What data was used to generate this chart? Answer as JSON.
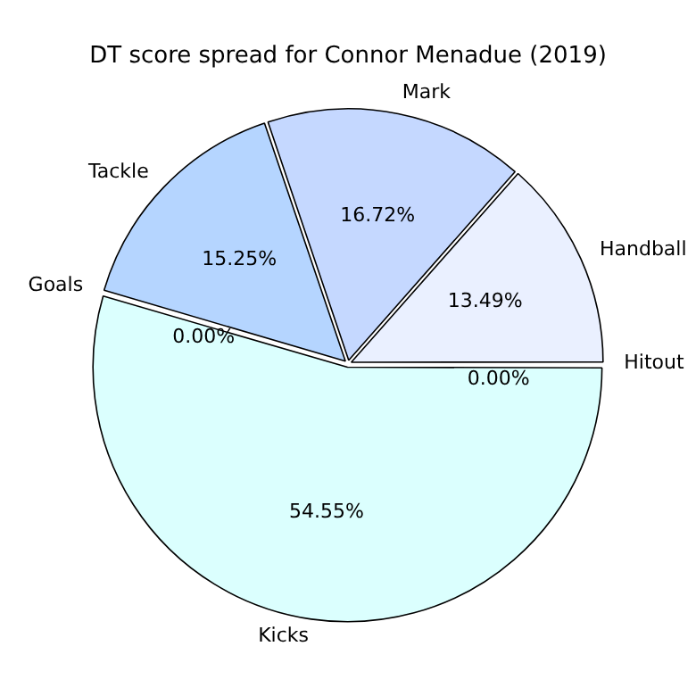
{
  "chart_data": {
    "type": "pie",
    "title": "DT score spread for Connor Menadue (2019)",
    "categories": [
      "Kicks",
      "Goals",
      "Tackle",
      "Mark",
      "Handball",
      "Hitout"
    ],
    "values": [
      54.55,
      0.0,
      15.25,
      16.72,
      13.49,
      0.0
    ],
    "colors": [
      "#dbfffe",
      "#ffffff",
      "#b5d5ff",
      "#c5d8ff",
      "#eaf0ff",
      "#ffffff"
    ],
    "value_labels": [
      "54.55%",
      "0.00%",
      "15.25%",
      "16.72%",
      "13.49%",
      "0.00%"
    ],
    "legend": false
  }
}
